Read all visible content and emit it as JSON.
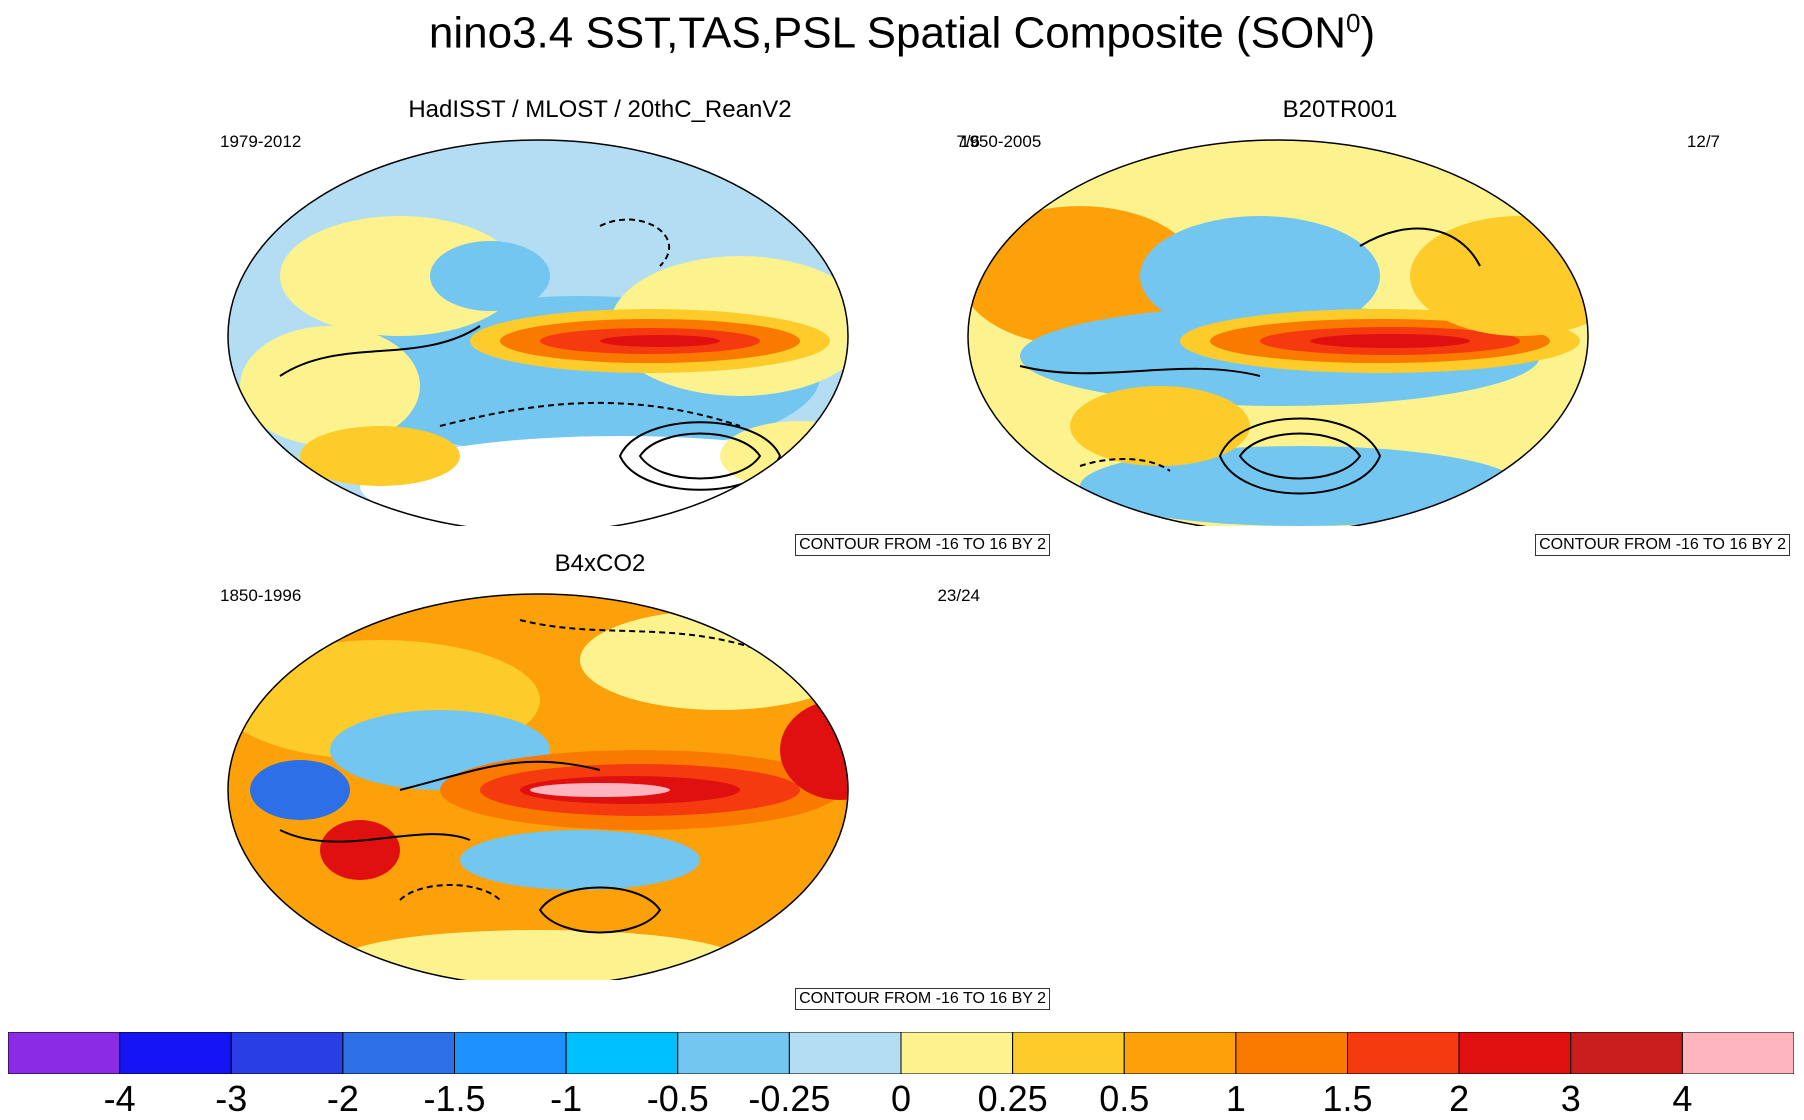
{
  "title": {
    "main": "nino3.4 SST,TAS,PSL Spatial Composite (SON",
    "superscript": "0",
    "close": ")"
  },
  "panels": [
    {
      "title": "HadISST / MLOST / 20thC_ReanV2",
      "years": "1979-2012",
      "count": "7/6",
      "contour": "CONTOUR FROM -16 TO 16 BY 2",
      "map_icon": "world-map-icon"
    },
    {
      "title": "B20TR001",
      "years": "1950-2005",
      "count": "12/7",
      "contour": "CONTOUR FROM -16 TO 16 BY 2",
      "map_icon": "world-map-icon"
    },
    {
      "title": "B4xCO2",
      "years": "1850-1996",
      "count": "23/24",
      "contour": "CONTOUR FROM -16 TO 16 BY 2",
      "map_icon": "world-map-icon"
    }
  ],
  "colorbar": {
    "colors": [
      "#8b2be6",
      "#1414f5",
      "#2a3ee6",
      "#2d6fe6",
      "#1e90ff",
      "#00bfff",
      "#73c6f0",
      "#b3ddf2",
      "#fdf38e",
      "#fdcc2a",
      "#fca10a",
      "#fa7a00",
      "#f53a0f",
      "#e01010",
      "#c81e1e",
      "#ffb4be"
    ],
    "labels": [
      "-4",
      "-3",
      "-2",
      "-1.5",
      "-1",
      "-0.5",
      "-0.25",
      "0",
      "0.25",
      "0.5",
      "1",
      "1.5",
      "2",
      "3",
      "4"
    ]
  }
}
